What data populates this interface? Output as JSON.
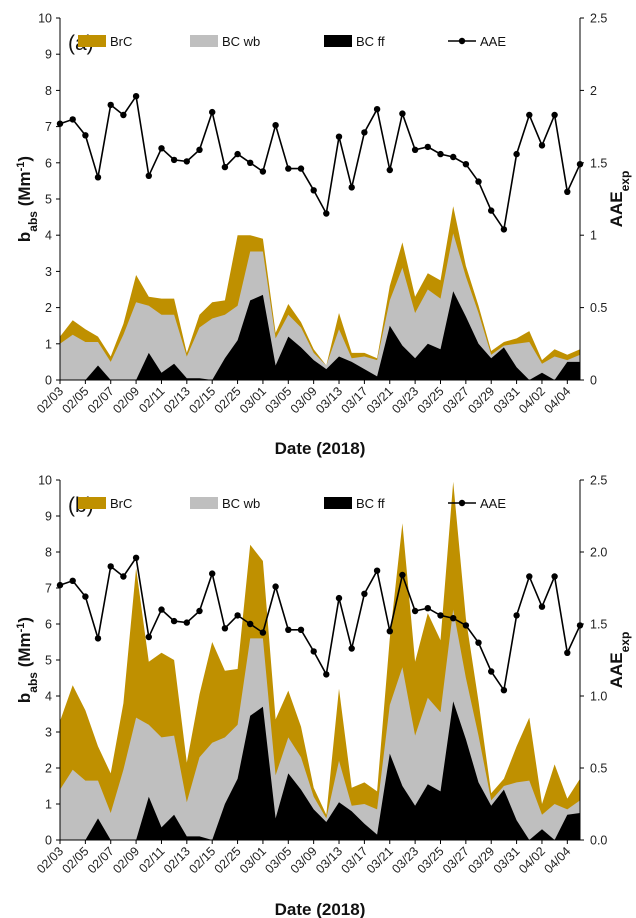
{
  "colors": {
    "brc": "#bf9000",
    "bc_wb": "#bfbfbf",
    "bc_ff": "#000000",
    "aae": "#000000",
    "axis": "#000000"
  },
  "chart_data": [
    {
      "type": "area",
      "panel_label": "(a)",
      "xlabel": "Date (2018)",
      "ylabel_main": "b",
      "ylabel_sub": "abs",
      "ylabel_unit": "(Mm",
      "ylabel_unit_sup": "-1",
      "ylabel_unit_end": ")",
      "y2label_main": "AAE",
      "y2label_sub": "exp",
      "ylim": [
        0,
        10
      ],
      "y2lim": [
        0,
        2.5
      ],
      "yticks": [
        "0",
        "1",
        "2",
        "3",
        "4",
        "5",
        "6",
        "7",
        "8",
        "9",
        "10"
      ],
      "y2ticks": [
        "0",
        "0.5",
        "1",
        "1.5",
        "2",
        "2.5"
      ],
      "legend": [
        "BrC",
        "BC wb",
        "BC ff",
        "AAE"
      ],
      "categories": [
        "02/03",
        "02/04",
        "02/05",
        "02/06",
        "02/07",
        "02/08",
        "02/09",
        "02/10",
        "02/11",
        "02/12",
        "02/13",
        "02/14",
        "02/15",
        "02/16",
        "02/25",
        "02/28",
        "03/01",
        "03/02",
        "03/05",
        "03/06",
        "03/09",
        "03/10",
        "03/13",
        "03/14",
        "03/17",
        "03/18",
        "03/21",
        "03/22",
        "03/23",
        "03/24",
        "03/25",
        "03/26",
        "03/27",
        "03/28",
        "03/29",
        "03/30",
        "03/31",
        "04/01",
        "04/02",
        "04/03",
        "04/04",
        "04/05"
      ],
      "tick_labels": [
        "02/03",
        "02/05",
        "02/07",
        "02/09",
        "02/11",
        "02/13",
        "02/15",
        "02/25",
        "03/01",
        "03/05",
        "03/09",
        "03/13",
        "03/17",
        "03/21",
        "03/23",
        "03/25",
        "03/27",
        "03/29",
        "03/31",
        "04/02",
        "04/04"
      ],
      "series": [
        {
          "name": "BC ff",
          "values": [
            0,
            0,
            0,
            0.4,
            0,
            0,
            0,
            0.75,
            0.2,
            0.45,
            0.05,
            0.05,
            0,
            0.6,
            1.1,
            2.2,
            2.35,
            0.4,
            1.2,
            0.9,
            0.55,
            0.3,
            0.65,
            0.5,
            0.3,
            0.1,
            1.5,
            0.95,
            0.6,
            1.0,
            0.85,
            2.45,
            1.75,
            1.0,
            0.6,
            0.9,
            0.35,
            0,
            0.2,
            0,
            0.5,
            0.5
          ]
        },
        {
          "name": "BC wb",
          "values": [
            1.0,
            1.25,
            1.05,
            1.05,
            0.5,
            1.25,
            2.15,
            2.05,
            1.8,
            1.8,
            0.65,
            1.45,
            1.7,
            1.8,
            2.05,
            3.55,
            3.55,
            1.15,
            1.8,
            1.45,
            0.75,
            0.4,
            1.4,
            0.6,
            0.65,
            0.55,
            2.2,
            3.1,
            1.85,
            2.5,
            2.25,
            4.05,
            2.85,
            1.85,
            0.7,
            0.95,
            1.0,
            1.05,
            0.45,
            0.65,
            0.55,
            0.7
          ]
        },
        {
          "name": "BrC",
          "values": [
            1.2,
            1.65,
            1.4,
            1.2,
            0.65,
            1.55,
            2.9,
            2.3,
            2.25,
            2.25,
            0.75,
            1.8,
            2.15,
            2.2,
            4.0,
            4.0,
            3.9,
            1.3,
            2.1,
            1.6,
            0.85,
            0.4,
            1.85,
            0.75,
            0.75,
            0.6,
            2.6,
            3.8,
            2.3,
            2.95,
            2.75,
            4.8,
            3.15,
            2.05,
            0.8,
            1.05,
            1.15,
            1.35,
            0.55,
            0.85,
            0.7,
            0.85
          ]
        },
        {
          "name": "AAE",
          "values": [
            1.77,
            1.8,
            1.69,
            1.4,
            1.9,
            1.83,
            1.96,
            1.41,
            1.6,
            1.52,
            1.51,
            1.59,
            1.85,
            1.47,
            1.56,
            1.5,
            1.44,
            1.76,
            1.46,
            1.46,
            1.31,
            1.15,
            1.68,
            1.33,
            1.71,
            1.87,
            1.45,
            1.84,
            1.59,
            1.61,
            1.56,
            1.54,
            1.49,
            1.37,
            1.17,
            1.04,
            1.56,
            1.83,
            1.62,
            1.83,
            1.3,
            1.49
          ]
        }
      ]
    },
    {
      "type": "area",
      "panel_label": "(b)",
      "xlabel": "Date (2018)",
      "ylabel_main": "b",
      "ylabel_sub": "abs",
      "ylabel_unit": "(Mm",
      "ylabel_unit_sup": "-1",
      "ylabel_unit_end": ")",
      "y2label_main": "AAE",
      "y2label_sub": "exp",
      "ylim": [
        0,
        10
      ],
      "y2lim": [
        0,
        2.5
      ],
      "yticks": [
        "0",
        "1",
        "2",
        "3",
        "4",
        "5",
        "6",
        "7",
        "8",
        "9",
        "10"
      ],
      "y2ticks": [
        "0.0",
        "0.5",
        "1.0",
        "1.5",
        "2.0",
        "2.5"
      ],
      "legend": [
        "BrC",
        "BC wb",
        "BC ff",
        "AAE"
      ],
      "categories": [
        "02/03",
        "02/04",
        "02/05",
        "02/06",
        "02/07",
        "02/08",
        "02/09",
        "02/10",
        "02/11",
        "02/12",
        "02/13",
        "02/14",
        "02/15",
        "02/16",
        "02/25",
        "02/28",
        "03/01",
        "03/02",
        "03/05",
        "03/06",
        "03/09",
        "03/10",
        "03/13",
        "03/14",
        "03/17",
        "03/18",
        "03/21",
        "03/22",
        "03/23",
        "03/24",
        "03/25",
        "03/26",
        "03/27",
        "03/28",
        "03/29",
        "03/30",
        "03/31",
        "04/01",
        "04/02",
        "04/03",
        "04/04",
        "04/05"
      ],
      "tick_labels": [
        "02/03",
        "02/05",
        "02/07",
        "02/09",
        "02/11",
        "02/13",
        "02/15",
        "02/25",
        "03/01",
        "03/05",
        "03/09",
        "03/13",
        "03/17",
        "03/21",
        "03/23",
        "03/25",
        "03/27",
        "03/29",
        "03/31",
        "04/02",
        "04/04"
      ],
      "series": [
        {
          "name": "BC ff",
          "values": [
            0,
            0,
            0,
            0.6,
            0,
            0,
            0,
            1.2,
            0.35,
            0.7,
            0.1,
            0.1,
            0,
            1.0,
            1.7,
            3.45,
            3.7,
            0.6,
            1.85,
            1.4,
            0.85,
            0.5,
            1.05,
            0.8,
            0.45,
            0.15,
            2.4,
            1.5,
            0.95,
            1.55,
            1.35,
            3.85,
            2.8,
            1.6,
            0.95,
            1.4,
            0.55,
            0,
            0.3,
            0,
            0.7,
            0.75
          ]
        },
        {
          "name": "BC wb",
          "values": [
            1.4,
            1.95,
            1.65,
            1.65,
            0.75,
            1.95,
            3.4,
            3.2,
            2.85,
            2.9,
            1.05,
            2.3,
            2.7,
            2.85,
            3.2,
            5.6,
            5.6,
            1.8,
            2.85,
            2.3,
            1.2,
            0.6,
            2.2,
            0.95,
            1.0,
            0.85,
            3.75,
            4.8,
            2.9,
            3.95,
            3.55,
            6.4,
            4.5,
            2.9,
            1.1,
            1.5,
            1.6,
            1.65,
            0.7,
            1.0,
            0.85,
            1.1
          ]
        },
        {
          "name": "BrC",
          "values": [
            3.3,
            4.3,
            3.6,
            2.6,
            1.85,
            3.8,
            7.55,
            4.95,
            5.2,
            5.0,
            2.15,
            4.05,
            5.5,
            4.7,
            4.75,
            8.2,
            7.75,
            3.35,
            4.15,
            3.15,
            1.45,
            0.7,
            4.2,
            1.45,
            1.6,
            1.35,
            5.6,
            8.8,
            4.95,
            6.3,
            5.55,
            9.95,
            6.15,
            3.85,
            1.3,
            1.7,
            2.6,
            3.4,
            1.0,
            2.1,
            1.15,
            1.7
          ]
        },
        {
          "name": "AAE",
          "values": [
            1.77,
            1.8,
            1.69,
            1.4,
            1.9,
            1.83,
            1.96,
            1.41,
            1.6,
            1.52,
            1.51,
            1.59,
            1.85,
            1.47,
            1.56,
            1.5,
            1.44,
            1.76,
            1.46,
            1.46,
            1.31,
            1.15,
            1.68,
            1.33,
            1.71,
            1.87,
            1.45,
            1.84,
            1.59,
            1.61,
            1.56,
            1.54,
            1.49,
            1.37,
            1.17,
            1.04,
            1.56,
            1.83,
            1.62,
            1.83,
            1.3,
            1.49
          ]
        }
      ]
    }
  ]
}
